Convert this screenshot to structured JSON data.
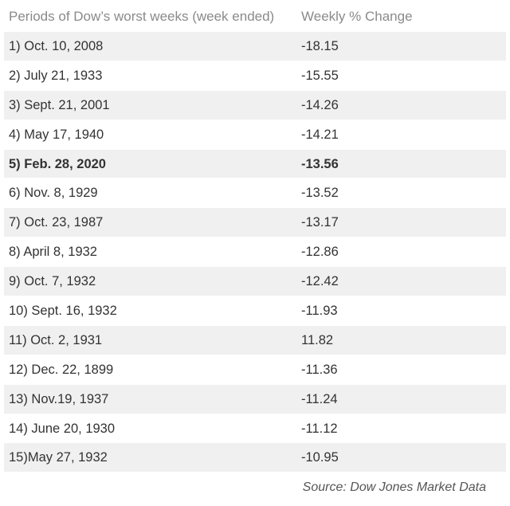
{
  "chart_data": {
    "type": "table",
    "columns": [
      "Periods of Dow’s worst weeks (week ended)",
      "Weekly % Change"
    ],
    "rows": [
      {
        "period": "1) Oct. 10, 2008",
        "change": "-18.15",
        "highlight": false
      },
      {
        "period": "2) July 21, 1933",
        "change": "-15.55",
        "highlight": false
      },
      {
        "period": "3) Sept. 21, 2001",
        "change": "-14.26",
        "highlight": false
      },
      {
        "period": "4) May 17, 1940",
        "change": "-14.21",
        "highlight": false
      },
      {
        "period": "5) Feb. 28, 2020",
        "change": "-13.56",
        "highlight": true
      },
      {
        "period": "6) Nov. 8, 1929",
        "change": "-13.52",
        "highlight": false
      },
      {
        "period": "7) Oct. 23, 1987",
        "change": "-13.17",
        "highlight": false
      },
      {
        "period": "8) April 8, 1932",
        "change": "-12.86",
        "highlight": false
      },
      {
        "period": "9) Oct. 7, 1932",
        "change": "-12.42",
        "highlight": false
      },
      {
        "period": "10) Sept. 16, 1932",
        "change": "-11.93",
        "highlight": false
      },
      {
        "period": "11) Oct. 2, 1931",
        "change": "11.82",
        "highlight": false
      },
      {
        "period": "12) Dec. 22, 1899",
        "change": "-11.36",
        "highlight": false
      },
      {
        "period": "13) Nov.19, 1937",
        "change": "-11.24",
        "highlight": false
      },
      {
        "period": "14) June 20, 1930",
        "change": "-11.12",
        "highlight": false
      },
      {
        "period": "15)May 27, 1932",
        "change": "-10.95",
        "highlight": false
      }
    ],
    "source": "Source: Dow Jones Market Data"
  }
}
